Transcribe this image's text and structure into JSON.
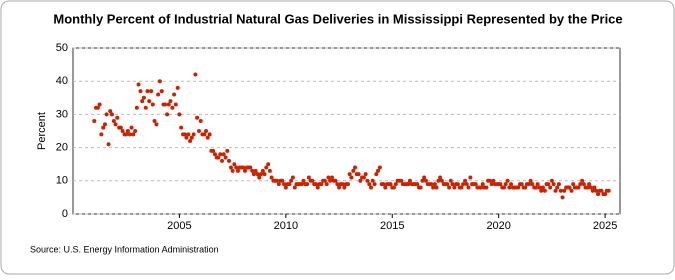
{
  "chart_data": {
    "type": "scatter",
    "title": "Monthly Percent of Industrial Natural Gas Deliveries in Mississippi Represented by the Price",
    "y_label": "Percent",
    "source": "Source: U.S. Energy Information Administration",
    "color": "#cc2200",
    "grid": true,
    "xlim": [
      2000,
      2025.7
    ],
    "ylim": [
      0,
      50
    ],
    "xticks": [
      2005,
      2010,
      2015,
      2020,
      2025
    ],
    "yticks": [
      0,
      10,
      20,
      30,
      40,
      50
    ],
    "x": [
      2001,
      2001.08,
      2001.17,
      2001.25,
      2001.33,
      2001.42,
      2001.5,
      2001.58,
      2001.67,
      2001.75,
      2001.83,
      2001.92,
      2002,
      2002.08,
      2002.17,
      2002.25,
      2002.33,
      2002.42,
      2002.5,
      2002.58,
      2002.67,
      2002.75,
      2002.83,
      2002.92,
      2003,
      2003.08,
      2003.17,
      2003.25,
      2003.33,
      2003.42,
      2003.5,
      2003.58,
      2003.67,
      2003.75,
      2003.83,
      2003.92,
      2004,
      2004.08,
      2004.17,
      2004.25,
      2004.33,
      2004.42,
      2004.5,
      2004.58,
      2004.67,
      2004.75,
      2004.83,
      2004.92,
      2005,
      2005.08,
      2005.17,
      2005.25,
      2005.33,
      2005.42,
      2005.5,
      2005.58,
      2005.67,
      2005.75,
      2005.83,
      2005.92,
      2006,
      2006.08,
      2006.17,
      2006.25,
      2006.33,
      2006.42,
      2006.5,
      2006.58,
      2006.67,
      2006.75,
      2006.83,
      2006.92,
      2007,
      2007.08,
      2007.17,
      2007.25,
      2007.33,
      2007.42,
      2007.5,
      2007.58,
      2007.67,
      2007.75,
      2007.83,
      2007.92,
      2008,
      2008.08,
      2008.17,
      2008.25,
      2008.33,
      2008.42,
      2008.5,
      2008.58,
      2008.67,
      2008.75,
      2008.83,
      2008.92,
      2009,
      2009.08,
      2009.17,
      2009.25,
      2009.33,
      2009.42,
      2009.5,
      2009.58,
      2009.67,
      2009.75,
      2009.83,
      2009.92,
      2010,
      2010.08,
      2010.17,
      2010.25,
      2010.33,
      2010.42,
      2010.5,
      2010.58,
      2010.67,
      2010.75,
      2010.83,
      2010.92,
      2011,
      2011.08,
      2011.17,
      2011.25,
      2011.33,
      2011.42,
      2011.5,
      2011.58,
      2011.67,
      2011.75,
      2011.83,
      2011.92,
      2012,
      2012.08,
      2012.17,
      2012.25,
      2012.33,
      2012.42,
      2012.5,
      2012.58,
      2012.67,
      2012.75,
      2012.83,
      2012.92,
      2013,
      2013.08,
      2013.17,
      2013.25,
      2013.33,
      2013.42,
      2013.5,
      2013.58,
      2013.67,
      2013.75,
      2013.83,
      2013.92,
      2014,
      2014.08,
      2014.17,
      2014.25,
      2014.33,
      2014.42,
      2014.5,
      2014.58,
      2014.67,
      2014.75,
      2014.83,
      2014.92,
      2015,
      2015.08,
      2015.17,
      2015.25,
      2015.33,
      2015.42,
      2015.5,
      2015.58,
      2015.67,
      2015.75,
      2015.83,
      2015.92,
      2016,
      2016.08,
      2016.17,
      2016.25,
      2016.33,
      2016.42,
      2016.5,
      2016.58,
      2016.67,
      2016.75,
      2016.83,
      2016.92,
      2017,
      2017.08,
      2017.17,
      2017.25,
      2017.33,
      2017.42,
      2017.5,
      2017.58,
      2017.67,
      2017.75,
      2017.83,
      2017.92,
      2018,
      2018.08,
      2018.17,
      2018.25,
      2018.33,
      2018.42,
      2018.5,
      2018.58,
      2018.67,
      2018.75,
      2018.83,
      2018.92,
      2019,
      2019.08,
      2019.17,
      2019.25,
      2019.33,
      2019.42,
      2019.5,
      2019.58,
      2019.67,
      2019.75,
      2019.83,
      2019.92,
      2020,
      2020.08,
      2020.17,
      2020.25,
      2020.33,
      2020.42,
      2020.5,
      2020.58,
      2020.67,
      2020.75,
      2020.83,
      2020.92,
      2021,
      2021.08,
      2021.17,
      2021.25,
      2021.33,
      2021.42,
      2021.5,
      2021.58,
      2021.67,
      2021.75,
      2021.83,
      2021.92,
      2022,
      2022.08,
      2022.17,
      2022.25,
      2022.33,
      2022.42,
      2022.5,
      2022.58,
      2022.67,
      2022.75,
      2022.83,
      2022.92,
      2023,
      2023.08,
      2023.17,
      2023.25,
      2023.33,
      2023.42,
      2023.5,
      2023.58,
      2023.67,
      2023.75,
      2023.83,
      2023.92,
      2024,
      2024.08,
      2024.17,
      2024.25,
      2024.33,
      2024.42,
      2024.5,
      2024.58,
      2024.67,
      2024.75,
      2024.83,
      2024.92,
      2025,
      2025.08,
      2025.17
    ],
    "values": [
      28,
      32,
      32,
      33,
      24,
      26,
      27,
      30,
      21,
      31,
      30,
      28,
      27,
      29,
      26,
      26,
      25,
      24,
      24,
      25,
      24,
      26,
      24,
      25,
      32,
      39,
      37,
      34,
      35,
      32,
      37,
      34,
      37,
      33,
      28,
      27,
      36,
      40,
      37,
      33,
      33,
      30,
      33,
      34,
      32,
      36,
      33,
      38,
      30,
      26,
      24,
      24,
      23,
      24,
      22,
      23,
      24,
      42,
      29,
      25,
      28,
      24,
      24,
      25,
      23,
      24,
      19,
      19,
      18,
      17,
      17,
      18,
      16,
      18,
      17,
      19,
      16,
      14,
      13,
      15,
      14,
      13,
      14,
      14,
      14,
      13,
      14,
      14,
      14,
      13,
      12,
      13,
      12,
      11,
      12,
      13,
      12,
      14,
      15,
      13,
      11,
      10,
      10,
      10,
      9,
      10,
      10,
      9,
      8,
      9,
      9,
      10,
      11,
      8,
      9,
      9,
      9,
      9,
      10,
      9,
      9,
      11,
      10,
      10,
      9,
      9,
      8,
      9,
      9,
      10,
      10,
      9,
      11,
      10,
      11,
      10,
      10,
      9,
      8,
      9,
      9,
      8,
      9,
      9,
      12,
      11,
      13,
      14,
      12,
      12,
      10,
      11,
      11,
      12,
      10,
      9,
      8,
      10,
      9,
      12,
      13,
      14,
      9,
      9,
      8,
      9,
      9,
      9,
      8,
      8,
      9,
      10,
      10,
      10,
      9,
      9,
      9,
      9,
      10,
      9,
      9,
      9,
      9,
      8,
      8,
      10,
      11,
      10,
      9,
      9,
      9,
      8,
      9,
      8,
      10,
      11,
      10,
      9,
      9,
      9,
      8,
      10,
      9,
      8,
      9,
      9,
      8,
      8,
      9,
      10,
      9,
      8,
      11,
      9,
      9,
      9,
      8,
      8,
      8,
      9,
      8,
      8,
      10,
      10,
      9,
      10,
      9,
      9,
      9,
      9,
      8,
      8,
      9,
      10,
      8,
      9,
      8,
      8,
      8,
      8,
      9,
      9,
      8,
      8,
      9,
      9,
      10,
      9,
      8,
      8,
      9,
      8,
      7,
      8,
      7,
      9,
      9,
      8,
      10,
      9,
      7,
      8,
      9,
      7,
      5,
      7,
      8,
      8,
      8,
      7,
      9,
      8,
      8,
      8,
      9,
      10,
      9,
      8,
      8,
      9,
      8,
      7,
      8,
      7,
      6,
      7,
      7,
      6,
      6,
      7,
      7
    ]
  }
}
